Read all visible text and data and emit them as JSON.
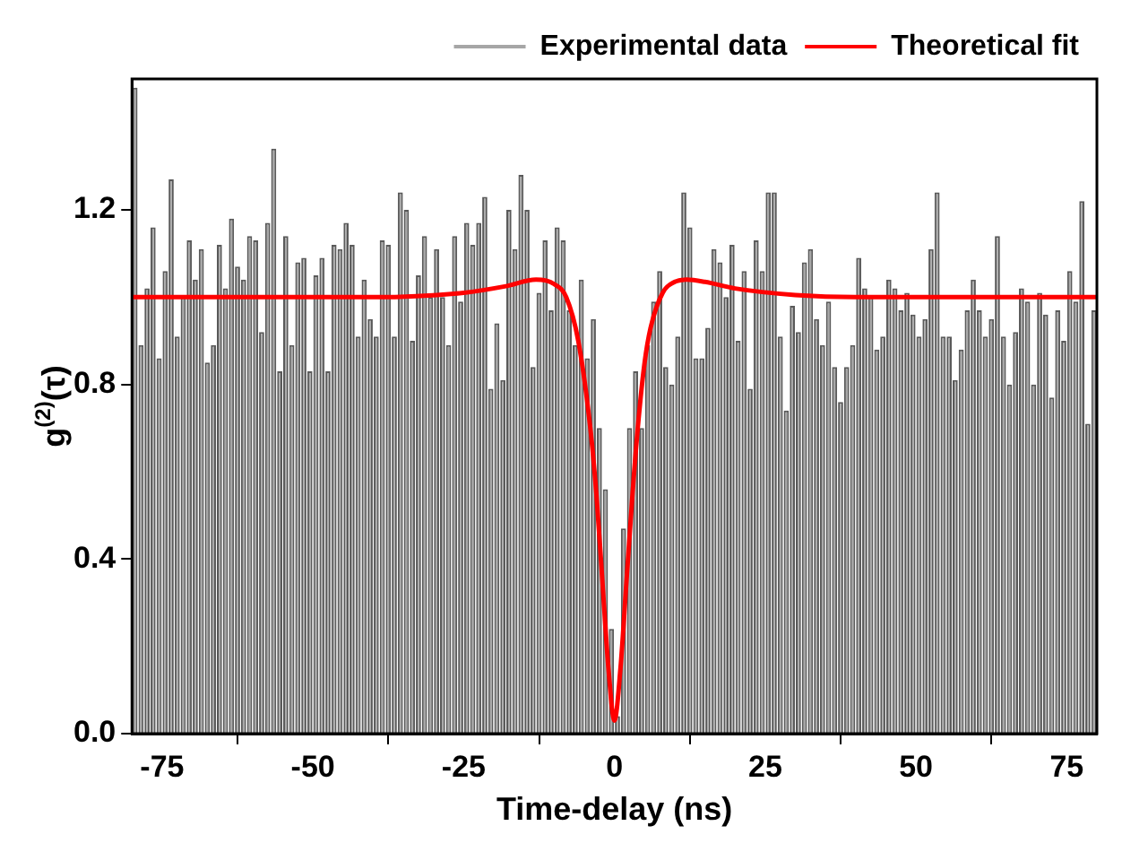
{
  "chart_data": {
    "type": "histogram",
    "xlabel": "Time-delay (ns)",
    "ylabel": "g$^{(2)}$(τ)",
    "bins": [
      -80,
      -79,
      -78,
      -77,
      -76,
      -75,
      -74,
      -73,
      -72,
      -71,
      -70,
      -69,
      -68,
      -67,
      -66,
      -65,
      -64,
      -63,
      -62,
      -61,
      -60,
      -59,
      -58,
      -57,
      -56,
      -55,
      -54,
      -53,
      -52,
      -51,
      -50,
      -49,
      -48,
      -47,
      -46,
      -45,
      -44,
      -43,
      -42,
      -41,
      -40,
      -39,
      -38,
      -37,
      -36,
      -35,
      -34,
      -33,
      -32,
      -31,
      -30,
      -29,
      -28,
      -27,
      -26,
      -25,
      -24,
      -23,
      -22,
      -21,
      -20,
      -19,
      -18,
      -17,
      -16,
      -15,
      -14,
      -13,
      -12,
      -11,
      -10,
      -9,
      -8,
      -7,
      -6,
      -5,
      -4,
      -3,
      -2,
      -1,
      0,
      1,
      2,
      3,
      4,
      5,
      6,
      7,
      8,
      9,
      10,
      11,
      12,
      13,
      14,
      15,
      16,
      17,
      18,
      19,
      20,
      21,
      22,
      23,
      24,
      25,
      26,
      27,
      28,
      29,
      30,
      31,
      32,
      33,
      34,
      35,
      36,
      37,
      38,
      39,
      40,
      41,
      42,
      43,
      44,
      45,
      46,
      47,
      48,
      49,
      50,
      51,
      52,
      53,
      54,
      55,
      56,
      57,
      58,
      59,
      60,
      61,
      62,
      63,
      64,
      65,
      66,
      67,
      68,
      69,
      70,
      71,
      72,
      73,
      74,
      75,
      76,
      77,
      78,
      79,
      80
    ],
    "series": [
      {
        "name": "Experimental data",
        "color": "#a6a6a6",
        "values": [
          1.48,
          0.89,
          1.02,
          1.16,
          0.86,
          1.06,
          1.27,
          0.91,
          1.0,
          1.13,
          1.04,
          1.11,
          0.85,
          0.89,
          1.12,
          1.02,
          1.18,
          1.07,
          1.04,
          1.14,
          1.13,
          0.92,
          1.17,
          1.34,
          0.83,
          1.14,
          0.89,
          1.08,
          1.09,
          0.83,
          1.05,
          1.09,
          0.83,
          1.12,
          1.11,
          1.17,
          1.12,
          0.91,
          1.04,
          0.95,
          0.91,
          1.13,
          1.12,
          0.91,
          1.24,
          1.2,
          0.9,
          1.05,
          1.14,
          1.0,
          1.11,
          1.0,
          0.89,
          1.14,
          0.99,
          1.17,
          1.12,
          1.17,
          1.23,
          0.79,
          0.94,
          0.81,
          1.2,
          1.11,
          1.28,
          1.2,
          0.84,
          1.01,
          1.13,
          0.97,
          1.16,
          1.13,
          0.97,
          0.89,
          1.04,
          0.86,
          0.95,
          0.7,
          0.56,
          0.24,
          0.04,
          0.47,
          0.7,
          0.83,
          0.7,
          0.89,
          0.99,
          1.06,
          0.84,
          0.8,
          0.91,
          1.24,
          1.16,
          0.86,
          0.86,
          0.93,
          1.11,
          1.08,
          1.0,
          1.12,
          0.9,
          1.06,
          0.79,
          1.13,
          1.06,
          1.24,
          1.24,
          0.91,
          0.74,
          0.98,
          0.92,
          1.08,
          1.11,
          0.95,
          0.89,
          0.99,
          0.84,
          0.76,
          0.84,
          0.89,
          1.09,
          1.02,
          1.0,
          0.88,
          0.91,
          1.04,
          1.02,
          0.97,
          1.01,
          0.96,
          0.91,
          0.95,
          1.11,
          1.24,
          0.91,
          0.91,
          0.81,
          0.88,
          0.97,
          1.04,
          0.97,
          0.91,
          0.95,
          1.14,
          0.91,
          0.8,
          0.92,
          1.02,
          0.99,
          0.8,
          1.01,
          0.96,
          0.77,
          0.97,
          0.9,
          1.06,
          0.99,
          1.22,
          0.71,
          0.97
        ]
      },
      {
        "name": "Theoretical fit",
        "type": "line",
        "color": "#ff0000",
        "x": [
          -80,
          -40,
          -25,
          -18,
          -13,
          -10,
          -8,
          -6,
          -4,
          -3,
          -2,
          -1,
          0,
          1,
          2,
          3,
          4,
          5,
          6,
          8,
          10,
          12,
          15,
          20,
          30,
          40,
          80
        ],
        "values": [
          1.0,
          1.0,
          1.01,
          1.025,
          1.04,
          1.03,
          1.0,
          0.9,
          0.7,
          0.55,
          0.35,
          0.15,
          0.03,
          0.15,
          0.35,
          0.55,
          0.72,
          0.85,
          0.93,
          1.01,
          1.035,
          1.04,
          1.035,
          1.02,
          1.005,
          1.0,
          1.0
        ]
      }
    ],
    "xlim": [
      -80,
      80
    ],
    "xticks": [
      -75,
      -50,
      -25,
      0,
      25,
      50,
      75
    ],
    "ylim": [
      0,
      1.5
    ],
    "yticks": [
      {
        "value": 0,
        "label": "0.0"
      },
      {
        "value": 0.4,
        "label": "0.4"
      },
      {
        "value": 0.8,
        "label": "0.8"
      },
      {
        "value": 1.2,
        "label": "1.2"
      }
    ],
    "grid": false,
    "legend": "top right",
    "marker": "none",
    "line_style": "solid"
  }
}
